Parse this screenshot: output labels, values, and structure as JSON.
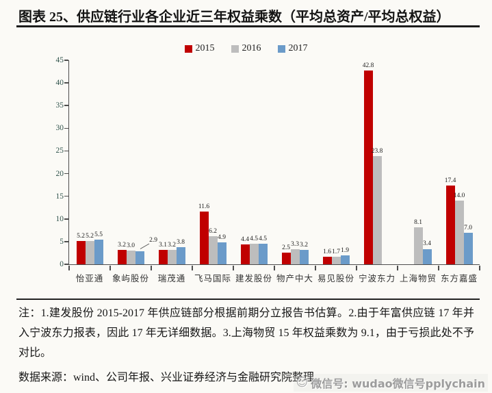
{
  "page": {
    "title": "图表 25、供应链行业各企业近三年权益乘数（平均总资产/平均总权益）",
    "note": "注：1.建发股份 2015-2017 年供应链部分根据前期分立报告书估算。2.由于年富供应链 17 年并入宁波东力报表，因此 17 年无详细数据。3.上海物贸 15 年权益乘数为 9.1，由于亏损此处不予对比。",
    "source": "数据来源：wind、公司年报、兴业证券经济与金融研究院整理",
    "watermark": "微信号: wudao微信号pplychain",
    "smiley_icon": "☺"
  },
  "chart_data": {
    "type": "bar",
    "title": "供应链行业各企业近三年权益乘数（平均总资产/平均总权益）",
    "categories": [
      "怡亚通",
      "象屿股份",
      "瑞茂通",
      "飞马国际",
      "建发股份",
      "物产中大",
      "易见股份",
      "宁波东力",
      "上海物贸",
      "东方嘉盛"
    ],
    "series": [
      {
        "name": "2015",
        "color": "#c00000",
        "values": [
          5.2,
          3.2,
          3.1,
          11.6,
          4.4,
          2.5,
          1.6,
          42.8,
          null,
          17.4
        ]
      },
      {
        "name": "2016",
        "color": "#bdbdbd",
        "values": [
          5.2,
          3.0,
          3.2,
          6.2,
          4.5,
          3.3,
          1.7,
          23.8,
          8.1,
          14.0
        ]
      },
      {
        "name": "2017",
        "color": "#6b9bc9",
        "values": [
          5.5,
          2.9,
          3.8,
          4.9,
          4.5,
          3.2,
          1.9,
          null,
          3.4,
          7.0
        ]
      }
    ],
    "xlabel": "",
    "ylabel": "",
    "ylim": [
      0,
      45
    ],
    "ytick_step": 5,
    "grid": false,
    "legend_position": "top",
    "data_labels": true,
    "label_overrides": {
      "1-2": {
        "dx": 20,
        "dy": -9,
        "leader": true
      }
    }
  }
}
